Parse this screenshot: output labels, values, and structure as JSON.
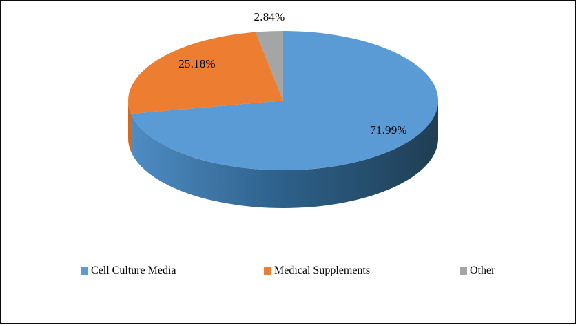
{
  "window": {
    "background_color": "#FFFFFF",
    "border_color": "#0A0A0A"
  },
  "chart_data": {
    "type": "pie",
    "style": "3d",
    "rotation_start": "top",
    "direction": "clockwise",
    "legend_position": "bottom",
    "categories": [
      "Cell Culture Media",
      "Medical Supplements",
      "Other"
    ],
    "values": [
      71.99,
      25.18,
      2.84
    ],
    "unit": "%",
    "slices": [
      {
        "category": "Cell Culture Media",
        "value": 71.99,
        "label": "71.99%",
        "color": "#5B9BD5",
        "side_color": "gradient"
      },
      {
        "category": "Medical Supplements",
        "value": 25.18,
        "label": "25.18%",
        "color": "#ED7D31",
        "side_color": "#D06A22"
      },
      {
        "category": "Other",
        "value": 2.84,
        "label": "2.84%",
        "color": "#A5A5A5",
        "side_color": "#7F7F7F"
      }
    ],
    "wall_gradient": [
      "#4E8CC4",
      "#2D6089",
      "#1F3E54"
    ]
  },
  "legend": {
    "items": [
      {
        "label": "Cell Culture Media",
        "swatch_color": "#5B9BD5"
      },
      {
        "label": "Medical Supplements",
        "swatch_color": "#ED7D31"
      },
      {
        "label": "Other",
        "swatch_color": "#A5A5A5"
      }
    ]
  }
}
